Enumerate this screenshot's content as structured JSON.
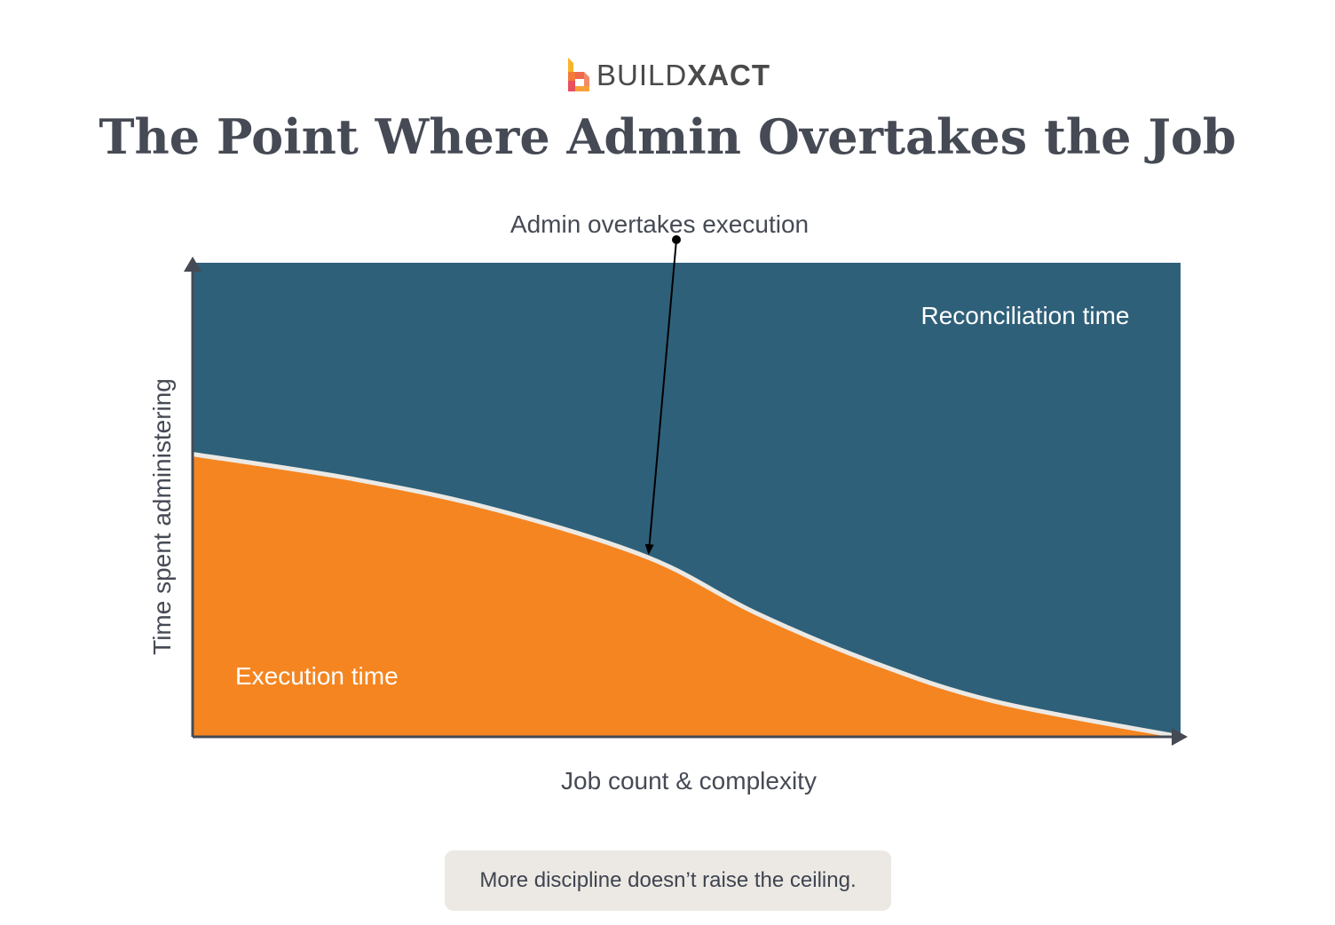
{
  "logo": {
    "brand_light": "BUILD",
    "brand_bold": "XACT"
  },
  "title": "The Point Where Admin Overtakes the Job",
  "chart_data": {
    "type": "area",
    "title": "The Point Where Admin Overtakes the Job",
    "xlabel": "Job count & complexity",
    "ylabel": "Time spent administering",
    "xlim": [
      0,
      100
    ],
    "ylim": [
      0,
      100
    ],
    "grid": false,
    "x": [
      0,
      16.4,
      30.8,
      46.1,
      56.9,
      68.6,
      81.1,
      100
    ],
    "series": [
      {
        "name": "Execution time",
        "values": [
          59.6,
          54.3,
          47.8,
          37.8,
          26.2,
          15.9,
          7.5,
          0
        ],
        "color": "#f58520"
      },
      {
        "name": "Reconciliation time",
        "values": [
          100,
          100,
          100,
          100,
          100,
          100,
          100,
          100
        ],
        "color": "#2f6079"
      }
    ],
    "annotations": [
      {
        "text": "Admin overtakes execution",
        "x": 46.1,
        "y": 37.8
      }
    ],
    "boundary_color": "#ece9e4"
  },
  "note": "More discipline doesn’t raise the ceiling."
}
